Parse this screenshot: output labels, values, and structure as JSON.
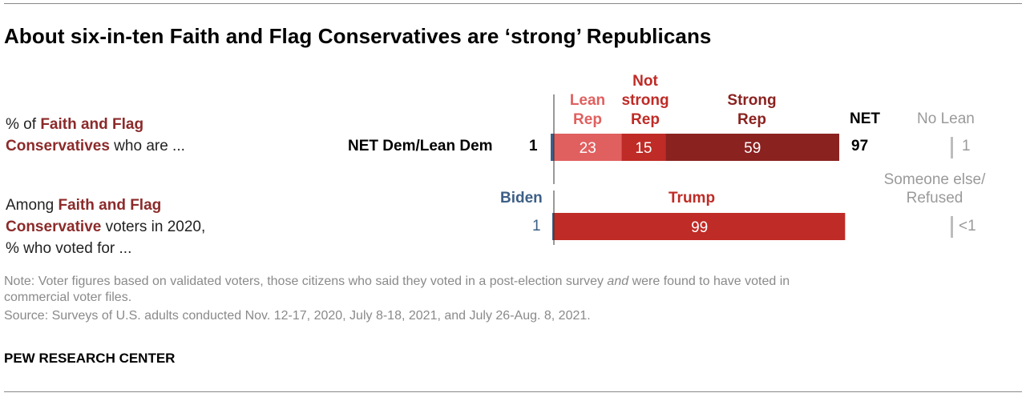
{
  "title": "About six-in-ten Faith and Flag Conservatives are ‘strong’ Republicans",
  "row1": {
    "label_prefix": "% of ",
    "label_highlight_1": "Faith and Flag",
    "label_highlight_2": "Conservatives",
    "label_suffix": " who are ...",
    "net_dem_label": "NET Dem/Lean Dem",
    "net_dem_value": "1",
    "net_header": "NET",
    "net_value": "97",
    "no_lean_header": "No Lean",
    "no_lean_value": "1"
  },
  "row2": {
    "label_1": "Among ",
    "label_highlight_1": "Faith and Flag",
    "label_highlight_2": "Conservative",
    "label_2": " voters in 2020,",
    "label_3": "% who voted for ...",
    "biden_header": "Biden",
    "biden_value": "1",
    "trump_header": "Trump",
    "other_header_1": "Someone else/",
    "other_header_2": "Refused",
    "other_value": "<1"
  },
  "headers": {
    "lean_rep_1": "Lean",
    "lean_rep_2": "Rep",
    "not_strong_1": "Not",
    "not_strong_2": "strong",
    "not_strong_3": "Rep",
    "strong_1": "Strong",
    "strong_2": "Rep"
  },
  "note_line_1_a": "Note: Voter figures based on validated voters, those citizens who said they voted in a post-election survey ",
  "note_line_1_em": "and",
  "note_line_1_b": " were found to have voted in",
  "note_line_2": "commercial voter files.",
  "source": "Source: Surveys of U.S. adults conducted Nov. 12-17, 2020, July 8-18, 2021, and July 26-Aug. 8, 2021.",
  "footer": "PEW RESEARCH CENTER",
  "colors": {
    "lean_rep": "#e0605f",
    "not_strong_rep": "#bf2b26",
    "strong_rep": "#8a2220",
    "dem": "#3d5f86",
    "trump": "#bf2b26",
    "highlight_text": "#8c2a2a",
    "lean_header": "#e0605f",
    "not_strong_header": "#bf2b26",
    "strong_header": "#8a2220",
    "biden_header": "#3d5f86"
  },
  "chart_data": [
    {
      "type": "bar",
      "orientation": "horizontal",
      "stacked": true,
      "categories": [
        "Faith and Flag Conservatives"
      ],
      "series": [
        {
          "name": "NET Dem/Lean Dem",
          "values": [
            1
          ]
        },
        {
          "name": "Lean Rep",
          "values": [
            23
          ]
        },
        {
          "name": "Not strong Rep",
          "values": [
            15
          ]
        },
        {
          "name": "Strong Rep",
          "values": [
            59
          ]
        }
      ],
      "extra_columns": {
        "NET": 97,
        "No Lean": 1
      }
    },
    {
      "type": "bar",
      "orientation": "horizontal",
      "stacked": true,
      "categories": [
        "Faith and Flag Conservative voters in 2020"
      ],
      "series": [
        {
          "name": "Biden",
          "values": [
            1
          ]
        },
        {
          "name": "Trump",
          "values": [
            99
          ]
        }
      ],
      "extra_columns": {
        "Someone else/Refused": "<1"
      }
    }
  ]
}
